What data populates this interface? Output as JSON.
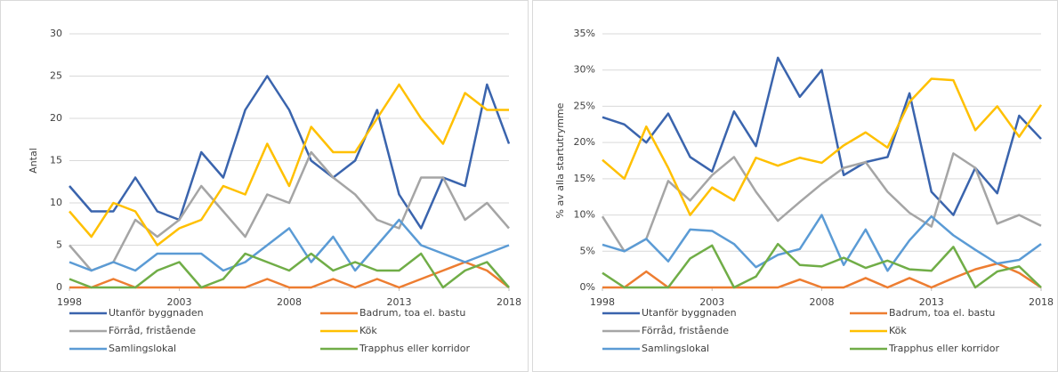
{
  "chart_data": [
    {
      "type": "line",
      "y_label": "Antal",
      "grid": true,
      "legend": "bottom",
      "x": [
        1998,
        1999,
        2000,
        2001,
        2002,
        2003,
        2004,
        2005,
        2006,
        2007,
        2008,
        2009,
        2010,
        2011,
        2012,
        2013,
        2014,
        2015,
        2016,
        2017,
        2018
      ],
      "xlim": [
        1998,
        2018
      ],
      "xticks": [
        1998,
        2003,
        2008,
        2013,
        2018
      ],
      "ylim": [
        0,
        30
      ],
      "yticks": [
        0,
        5,
        10,
        15,
        20,
        25,
        30
      ],
      "series": [
        {
          "name": "Utanför byggnaden",
          "color": "#3a64ad",
          "values": [
            12,
            9,
            9,
            13,
            9,
            8,
            16,
            13,
            21,
            25,
            21,
            15,
            13,
            15,
            21,
            11,
            7,
            13,
            12,
            24,
            17
          ]
        },
        {
          "name": "Badrum, toa el. bastu",
          "color": "#ed7d31",
          "values": [
            0,
            0,
            1,
            0,
            0,
            0,
            0,
            0,
            0,
            1,
            0,
            0,
            1,
            0,
            1,
            0,
            1,
            2,
            3,
            2,
            0
          ]
        },
        {
          "name": "Förråd, fristående",
          "color": "#a5a5a5",
          "values": [
            5,
            2,
            3,
            8,
            6,
            8,
            12,
            9,
            6,
            11,
            10,
            16,
            13,
            11,
            8,
            7,
            13,
            13,
            8,
            10,
            7
          ]
        },
        {
          "name": "Kök",
          "color": "#ffc000",
          "values": [
            9,
            6,
            10,
            9,
            5,
            7,
            8,
            12,
            11,
            17,
            12,
            19,
            16,
            16,
            20,
            24,
            20,
            17,
            23,
            21,
            21
          ]
        },
        {
          "name": "Samlingslokal",
          "color": "#5b9bd5",
          "values": [
            3,
            2,
            3,
            2,
            4,
            4,
            4,
            2,
            3,
            5,
            7,
            3,
            6,
            2,
            5,
            8,
            5,
            4,
            3,
            4,
            5
          ]
        },
        {
          "name": "Trapphus eller korridor",
          "color": "#70ad47",
          "values": [
            1,
            0,
            0,
            0,
            2,
            3,
            0,
            1,
            4,
            3,
            2,
            4,
            2,
            3,
            2,
            2,
            4,
            0,
            2,
            3,
            0
          ]
        }
      ]
    },
    {
      "type": "line",
      "y_label": "% av alla startutrymme",
      "grid": true,
      "legend": "bottom",
      "x": [
        1998,
        1999,
        2000,
        2001,
        2002,
        2003,
        2004,
        2005,
        2006,
        2007,
        2008,
        2009,
        2010,
        2011,
        2012,
        2013,
        2014,
        2015,
        2016,
        2017,
        2018
      ],
      "xlim": [
        1998,
        2018
      ],
      "xticks": [
        1998,
        2003,
        2008,
        2013,
        2018
      ],
      "ylim": [
        0,
        35
      ],
      "yticks": [
        {
          "value": 0,
          "label": "0%"
        },
        {
          "value": 5,
          "label": "5%"
        },
        {
          "value": 10,
          "label": "10%"
        },
        {
          "value": 15,
          "label": "15%"
        },
        {
          "value": 20,
          "label": "20%"
        },
        {
          "value": 25,
          "label": "25%"
        },
        {
          "value": 30,
          "label": "30%"
        },
        {
          "value": 35,
          "label": "35%"
        }
      ],
      "series": [
        {
          "name": "Utanför byggnaden",
          "color": "#3a64ad",
          "values": [
            23.5,
            22.5,
            20,
            24,
            18,
            16,
            24.3,
            19.5,
            31.7,
            26.3,
            30,
            15.5,
            17.3,
            18,
            26.8,
            13.2,
            10,
            16.5,
            13,
            23.7,
            20.5
          ]
        },
        {
          "name": "Badrum, toa el. bastu",
          "color": "#ed7d31",
          "values": [
            0,
            0,
            2.2,
            0,
            0,
            0,
            0,
            0,
            0,
            1.1,
            0,
            0,
            1.3,
            0,
            1.3,
            0,
            1.3,
            2.5,
            3.3,
            2,
            0
          ]
        },
        {
          "name": "Förråd, fristående",
          "color": "#a5a5a5",
          "values": [
            9.8,
            5,
            6.7,
            14.7,
            12,
            15.5,
            18,
            13.2,
            9.2,
            11.8,
            14.3,
            16.5,
            17.3,
            13.2,
            10.3,
            8.4,
            18.5,
            16.5,
            8.8,
            10,
            8.5
          ]
        },
        {
          "name": "Kök",
          "color": "#ffc000",
          "values": [
            17.6,
            15,
            22.2,
            16.5,
            10,
            13.8,
            12,
            17.9,
            16.8,
            17.9,
            17.2,
            19.6,
            21.4,
            19.3,
            25.6,
            28.8,
            28.6,
            21.7,
            25,
            20.8,
            25.2
          ]
        },
        {
          "name": "Samlingslokal",
          "color": "#5b9bd5",
          "values": [
            5.9,
            5,
            6.7,
            3.6,
            8,
            7.8,
            6,
            2.8,
            4.5,
            5.3,
            10,
            3.1,
            8,
            2.3,
            6.5,
            9.8,
            7.2,
            5.2,
            3.3,
            3.8,
            6
          ]
        },
        {
          "name": "Trapphus eller korridor",
          "color": "#70ad47",
          "values": [
            2,
            0,
            0,
            0,
            4,
            5.8,
            0,
            1.5,
            6,
            3.1,
            2.9,
            4.1,
            2.7,
            3.7,
            2.5,
            2.3,
            5.6,
            0,
            2.2,
            2.9,
            0
          ]
        }
      ]
    }
  ]
}
